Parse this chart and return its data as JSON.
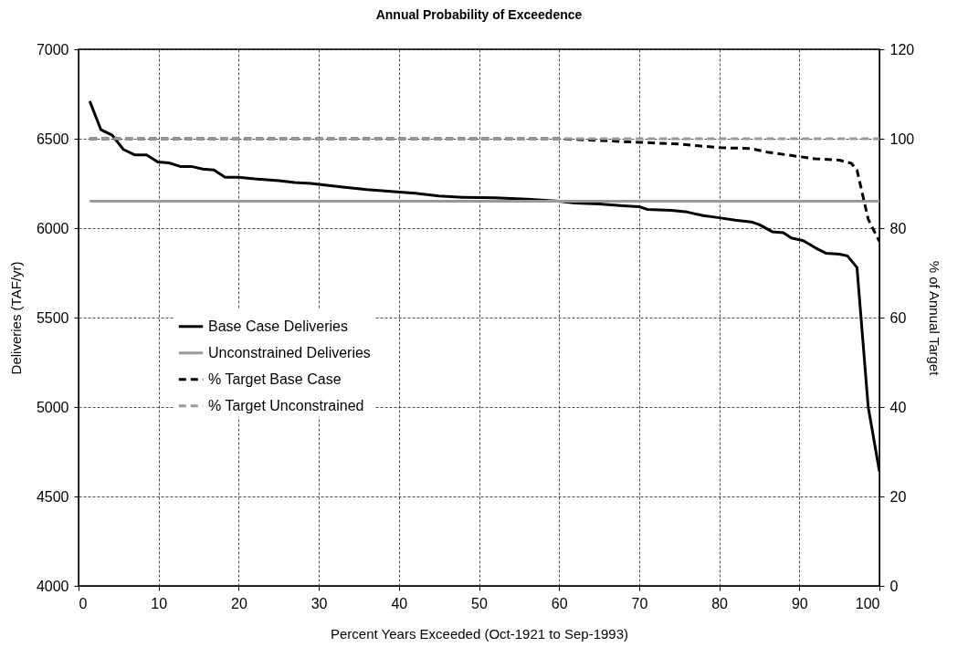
{
  "chart_data": {
    "type": "line",
    "title": "Annual Probability of Exceedence",
    "xlabel": "Percent Years Exceeded (Oct-1921 to Sep-1993)",
    "ylabel": "Deliveries (TAF/yr)",
    "y2label": "% of Annual Target",
    "xlim": [
      0,
      100
    ],
    "xticks": [
      0,
      10,
      20,
      30,
      40,
      50,
      60,
      70,
      80,
      90,
      100
    ],
    "ylim": [
      4000,
      7000
    ],
    "yticks": [
      4000,
      4500,
      5000,
      5500,
      6000,
      6500,
      7000
    ],
    "y2lim": [
      0,
      120
    ],
    "y2ticks": [
      0,
      20,
      40,
      60,
      80,
      100,
      120
    ],
    "grid": true,
    "legend": "left",
    "marker": "none",
    "series": [
      {
        "name": "Base Case Deliveries",
        "color": "#000000",
        "line_style": "solid",
        "x": [
          1.4,
          2.8,
          4.2,
          5.6,
          7,
          8.5,
          9.9,
          11.3,
          12.7,
          14.1,
          15.5,
          16.9,
          18.3,
          20,
          22,
          25,
          27,
          29,
          31,
          33,
          36,
          39,
          42,
          45,
          48,
          52,
          56,
          60,
          62,
          65,
          68,
          70,
          71,
          74,
          76,
          78,
          80,
          82,
          84,
          85,
          86.6,
          88,
          89,
          90.5,
          92,
          93.3,
          95,
          96,
          97.2,
          98.6,
          100
        ],
        "values": [
          6710,
          6550,
          6520,
          6440,
          6410,
          6410,
          6370,
          6365,
          6345,
          6345,
          6330,
          6325,
          6285,
          6285,
          6275,
          6265,
          6255,
          6250,
          6240,
          6230,
          6215,
          6205,
          6195,
          6180,
          6172,
          6170,
          6162,
          6150,
          6140,
          6135,
          6125,
          6120,
          6105,
          6100,
          6090,
          6070,
          6058,
          6045,
          6035,
          6020,
          5980,
          5975,
          5945,
          5930,
          5890,
          5860,
          5855,
          5845,
          5780,
          5000,
          4640
        ]
      },
      {
        "name": "Unconstrained Deliveries",
        "color": "#999999",
        "line_style": "solid",
        "x": [
          1.4,
          100
        ],
        "values": [
          6150,
          6150
        ]
      },
      {
        "name": "% Target Base Case",
        "color": "#000000",
        "line_style": "dashed",
        "axis": "y2",
        "x": [
          1.4,
          60,
          70,
          75,
          80,
          84,
          86,
          90,
          92,
          95,
          96.5,
          97.2,
          98.6,
          100
        ],
        "values": [
          100,
          100,
          99.2,
          98.8,
          98,
          97.8,
          97,
          96,
          95.5,
          95.2,
          94.5,
          93,
          82,
          77
        ]
      },
      {
        "name": "% Target Unconstrained",
        "color": "#999999",
        "line_style": "dashed",
        "axis": "y2",
        "x": [
          1.4,
          100
        ],
        "values": [
          100,
          100
        ]
      }
    ]
  }
}
